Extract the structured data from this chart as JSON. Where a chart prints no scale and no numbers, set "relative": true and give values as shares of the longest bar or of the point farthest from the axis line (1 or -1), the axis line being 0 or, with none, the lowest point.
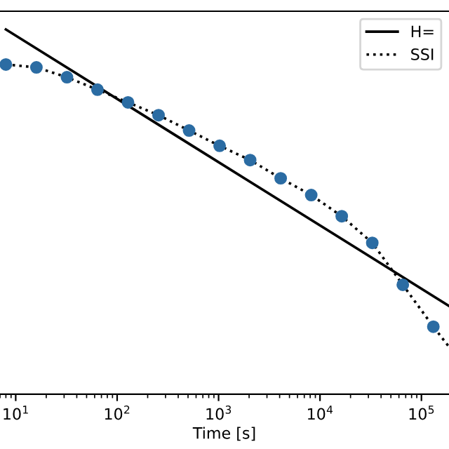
{
  "chart_data": {
    "type": "scatter",
    "xlabel": "Time [s]",
    "log": "x",
    "relative": true,
    "grid": false,
    "legend": "top right",
    "xlim": [
      7,
      187000
    ],
    "xticks": [
      {
        "value": 10,
        "label": "10$^{1}$"
      },
      {
        "value": 100,
        "label": "10$^{2}$"
      },
      {
        "value": 1000,
        "label": "10$^{3}$"
      },
      {
        "value": 10000,
        "label": "10$^{4}$"
      },
      {
        "value": 100000,
        "label": "10$^{5}$"
      }
    ],
    "series": [
      {
        "name": "H=",
        "type": "line",
        "color": "#000000",
        "line_style": "solid",
        "marker": "none",
        "x": [
          8,
          187000
        ],
        "values": [
          1.0,
          0.242
        ]
      },
      {
        "name": "SSI",
        "type": "line",
        "color": "#000000",
        "line_style": "dotted",
        "marker": "none",
        "x": [
          8,
          16,
          32,
          64,
          128,
          256,
          512,
          1024,
          2048,
          4096,
          8192,
          16384,
          32768,
          65536,
          131072,
          187000
        ],
        "values": [
          0.904,
          0.896,
          0.869,
          0.835,
          0.8,
          0.765,
          0.723,
          0.681,
          0.642,
          0.592,
          0.546,
          0.488,
          0.415,
          0.3,
          0.185,
          0.13
        ]
      },
      {
        "color": "#2b6ca3",
        "marker": "circle",
        "x": [
          8,
          16,
          32,
          64,
          128,
          256,
          512,
          1024,
          2048,
          4096,
          8192,
          16384,
          32768,
          65536,
          131072
        ],
        "values": [
          0.904,
          0.896,
          0.869,
          0.835,
          0.8,
          0.765,
          0.723,
          0.681,
          0.642,
          0.592,
          0.546,
          0.488,
          0.415,
          0.3,
          0.185
        ]
      }
    ]
  }
}
